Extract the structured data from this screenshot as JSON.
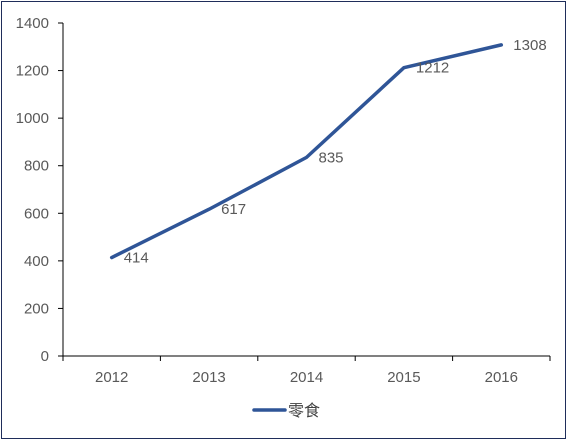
{
  "chart_data": {
    "type": "line",
    "categories": [
      "2012",
      "2013",
      "2014",
      "2015",
      "2016"
    ],
    "series": [
      {
        "name": "零食",
        "values": [
          414,
          617,
          835,
          1212,
          1308
        ],
        "color": "#2f5597"
      }
    ],
    "y_ticks": [
      "0",
      "200",
      "400",
      "600",
      "800",
      "1000",
      "1200",
      "1400"
    ],
    "ylim": [
      0,
      1400
    ],
    "grid": false,
    "legend_position": "bottom"
  }
}
